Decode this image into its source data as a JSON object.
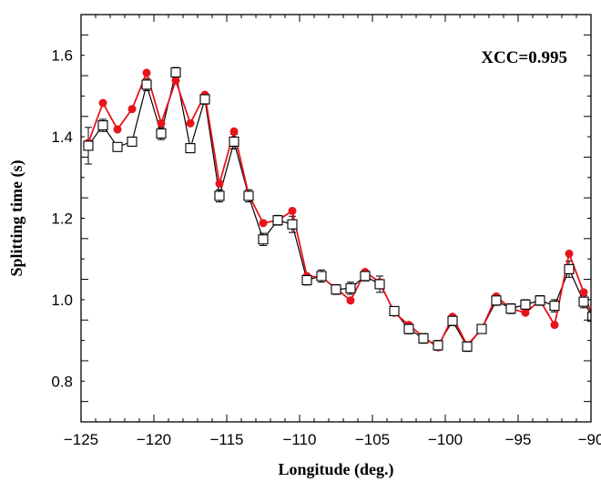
{
  "chart_data": {
    "type": "line",
    "title": "",
    "xlabel": "Longitude (deg.)",
    "ylabel": "Splitting time (s)",
    "xlim": [
      -125,
      -90
    ],
    "ylim": [
      0.7,
      1.7
    ],
    "xticks": [
      -125,
      -120,
      -115,
      -110,
      -105,
      -100,
      -95,
      -90
    ],
    "xtick_labels": [
      "−125",
      "−120",
      "−115",
      "−110",
      "−105",
      "−100",
      "−95",
      "−90"
    ],
    "yticks": [
      0.8,
      1.0,
      1.2,
      1.4,
      1.6
    ],
    "ytick_labels": [
      "0.8",
      "1.0",
      "1.2",
      "1.4",
      "1.6"
    ],
    "grid": false,
    "annotation": "XCC=0.995",
    "x": [
      -124.5,
      -123.5,
      -122.5,
      -121.5,
      -120.5,
      -119.5,
      -118.5,
      -117.5,
      -116.5,
      -115.5,
      -114.5,
      -113.5,
      -112.5,
      -111.5,
      -110.5,
      -109.5,
      -108.5,
      -107.5,
      -106.5,
      -105.5,
      -104.5,
      -103.5,
      -102.5,
      -101.5,
      -100.5,
      -99.5,
      -98.5,
      -97.5,
      -96.5,
      -95.5,
      -94.5,
      -93.5,
      -92.5,
      -91.5,
      -90.5,
      -89.9
    ],
    "series": [
      {
        "color": "#e8141b",
        "marker": "circle",
        "values": [
          1.385,
          1.483,
          1.418,
          1.468,
          1.557,
          1.433,
          1.538,
          1.433,
          1.503,
          1.285,
          1.413,
          1.258,
          1.188,
          1.195,
          1.218,
          1.058,
          1.055,
          1.028,
          0.998,
          1.068,
          1.043,
          0.968,
          0.938,
          0.908,
          0.883,
          0.958,
          0.888,
          0.928,
          1.008,
          0.978,
          0.968,
          0.998,
          0.938,
          1.113,
          1.018,
          0.958
        ]
      },
      {
        "color": "#000000",
        "marker": "square",
        "values": [
          1.378,
          1.428,
          1.375,
          1.388,
          1.528,
          1.408,
          1.558,
          1.372,
          1.492,
          1.255,
          1.388,
          1.255,
          1.148,
          1.195,
          1.185,
          1.048,
          1.058,
          1.025,
          1.028,
          1.058,
          1.038,
          0.972,
          0.928,
          0.905,
          0.888,
          0.948,
          0.885,
          0.928,
          0.998,
          0.978,
          0.988,
          0.998,
          0.985,
          1.075,
          0.995,
          0.958
        ],
        "errors": [
          0.045,
          0.015,
          0.01,
          0.01,
          0.015,
          0.015,
          0.012,
          0.01,
          0.012,
          0.015,
          0.018,
          0.015,
          0.015,
          0.012,
          0.02,
          0.012,
          0.015,
          0.012,
          0.015,
          0.012,
          0.02,
          0.01,
          0.012,
          0.012,
          0.012,
          0.012,
          0.012,
          0.01,
          0.012,
          0.012,
          0.012,
          0.012,
          0.015,
          0.02,
          0.015,
          0.01
        ]
      }
    ]
  }
}
